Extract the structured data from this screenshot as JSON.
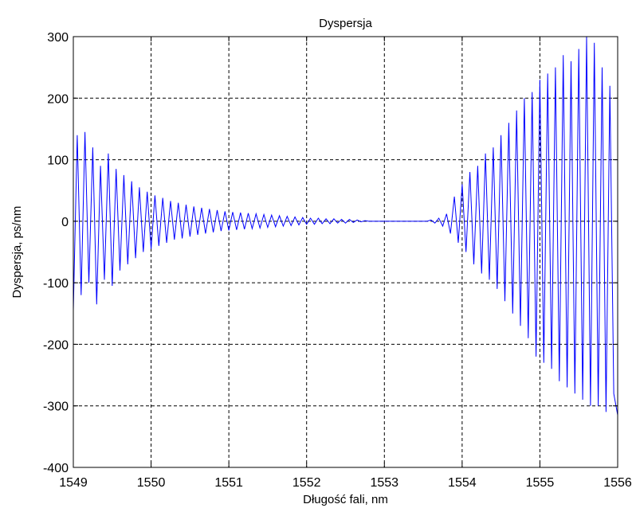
{
  "chart_data": {
    "type": "line",
    "title": "Dyspersja",
    "xlabel": "Długość fali, nm",
    "ylabel": "Dyspersja, ps/nm",
    "xlim": [
      1549,
      1556
    ],
    "ylim": [
      -400,
      300
    ],
    "xticks": [
      1549,
      1550,
      1551,
      1552,
      1553,
      1554,
      1555,
      1556
    ],
    "yticks": [
      -400,
      -300,
      -200,
      -100,
      0,
      100,
      200,
      300
    ],
    "xtick_labels": [
      "1549",
      "1550",
      "1551",
      "1552",
      "1553",
      "1554",
      "1555",
      "1556"
    ],
    "ytick_labels": [
      "-400",
      "-300",
      "-200",
      "-100",
      "0",
      "100",
      "200",
      "300"
    ],
    "grid": true,
    "grid_style": "dashed",
    "series": [
      {
        "color": "#0000ff",
        "x": [
          1549.0,
          1549.05,
          1549.1,
          1549.15,
          1549.2,
          1549.25,
          1549.3,
          1549.35,
          1549.4,
          1549.45,
          1549.5,
          1549.55,
          1549.6,
          1549.65,
          1549.7,
          1549.75,
          1549.8,
          1549.85,
          1549.9,
          1549.95,
          1550.0,
          1550.05,
          1550.1,
          1550.15,
          1550.2,
          1550.25,
          1550.3,
          1550.35,
          1550.4,
          1550.45,
          1550.5,
          1550.55,
          1550.6,
          1550.65,
          1550.7,
          1550.75,
          1550.8,
          1550.85,
          1550.9,
          1550.95,
          1551.0,
          1551.05,
          1551.1,
          1551.15,
          1551.2,
          1551.25,
          1551.3,
          1551.35,
          1551.4,
          1551.45,
          1551.5,
          1551.55,
          1551.6,
          1551.65,
          1551.7,
          1551.75,
          1551.8,
          1551.85,
          1551.9,
          1551.95,
          1552.0,
          1552.05,
          1552.1,
          1552.15,
          1552.2,
          1552.25,
          1552.3,
          1552.35,
          1552.4,
          1552.45,
          1552.5,
          1552.55,
          1552.6,
          1552.65,
          1552.7,
          1552.75,
          1552.8,
          1552.85,
          1552.9,
          1552.95,
          1553.0,
          1553.05,
          1553.1,
          1553.15,
          1553.2,
          1553.25,
          1553.3,
          1553.35,
          1553.4,
          1553.45,
          1553.5,
          1553.55,
          1553.6,
          1553.65,
          1553.7,
          1553.75,
          1553.8,
          1553.85,
          1553.9,
          1553.95,
          1554.0,
          1554.05,
          1554.1,
          1554.15,
          1554.2,
          1554.25,
          1554.3,
          1554.35,
          1554.4,
          1554.45,
          1554.5,
          1554.55,
          1554.6,
          1554.65,
          1554.7,
          1554.75,
          1554.8,
          1554.85,
          1554.9,
          1554.95,
          1555.0,
          1555.05,
          1555.1,
          1555.15,
          1555.2,
          1555.25,
          1555.3,
          1555.35,
          1555.4,
          1555.45,
          1555.5,
          1555.55,
          1555.6,
          1555.65,
          1555.7,
          1555.75,
          1555.8,
          1555.85,
          1555.9,
          1555.95,
          1556.0
        ],
        "y": [
          -145,
          140,
          -120,
          145,
          -100,
          120,
          -135,
          90,
          -95,
          110,
          -105,
          85,
          -80,
          75,
          -70,
          65,
          -60,
          55,
          -50,
          48,
          -45,
          42,
          -40,
          38,
          -35,
          33,
          -30,
          30,
          -28,
          27,
          -25,
          24,
          -22,
          22,
          -20,
          20,
          -18,
          18,
          -16,
          16,
          -15,
          15,
          -14,
          14,
          -13,
          13,
          -12,
          12,
          -11,
          11,
          -10,
          10,
          -9,
          9,
          -8,
          8,
          -7,
          7,
          -6,
          6,
          -5,
          5,
          -5,
          5,
          -4,
          4,
          -4,
          4,
          -3,
          3,
          -3,
          3,
          -2,
          2,
          -1,
          1,
          0,
          0,
          0,
          0,
          0,
          0,
          0,
          0,
          0,
          0,
          0,
          0,
          0,
          0,
          0,
          0,
          2,
          -3,
          5,
          -8,
          12,
          -20,
          40,
          -35,
          60,
          -50,
          80,
          -70,
          90,
          -85,
          110,
          -95,
          120,
          -110,
          140,
          -130,
          160,
          -150,
          180,
          -170,
          200,
          -190,
          210,
          -220,
          230,
          -230,
          240,
          -240,
          250,
          -260,
          270,
          -270,
          260,
          -280,
          280,
          -290,
          300,
          -300,
          290,
          -300,
          250,
          -310,
          220,
          -280,
          -315
        ]
      }
    ]
  }
}
